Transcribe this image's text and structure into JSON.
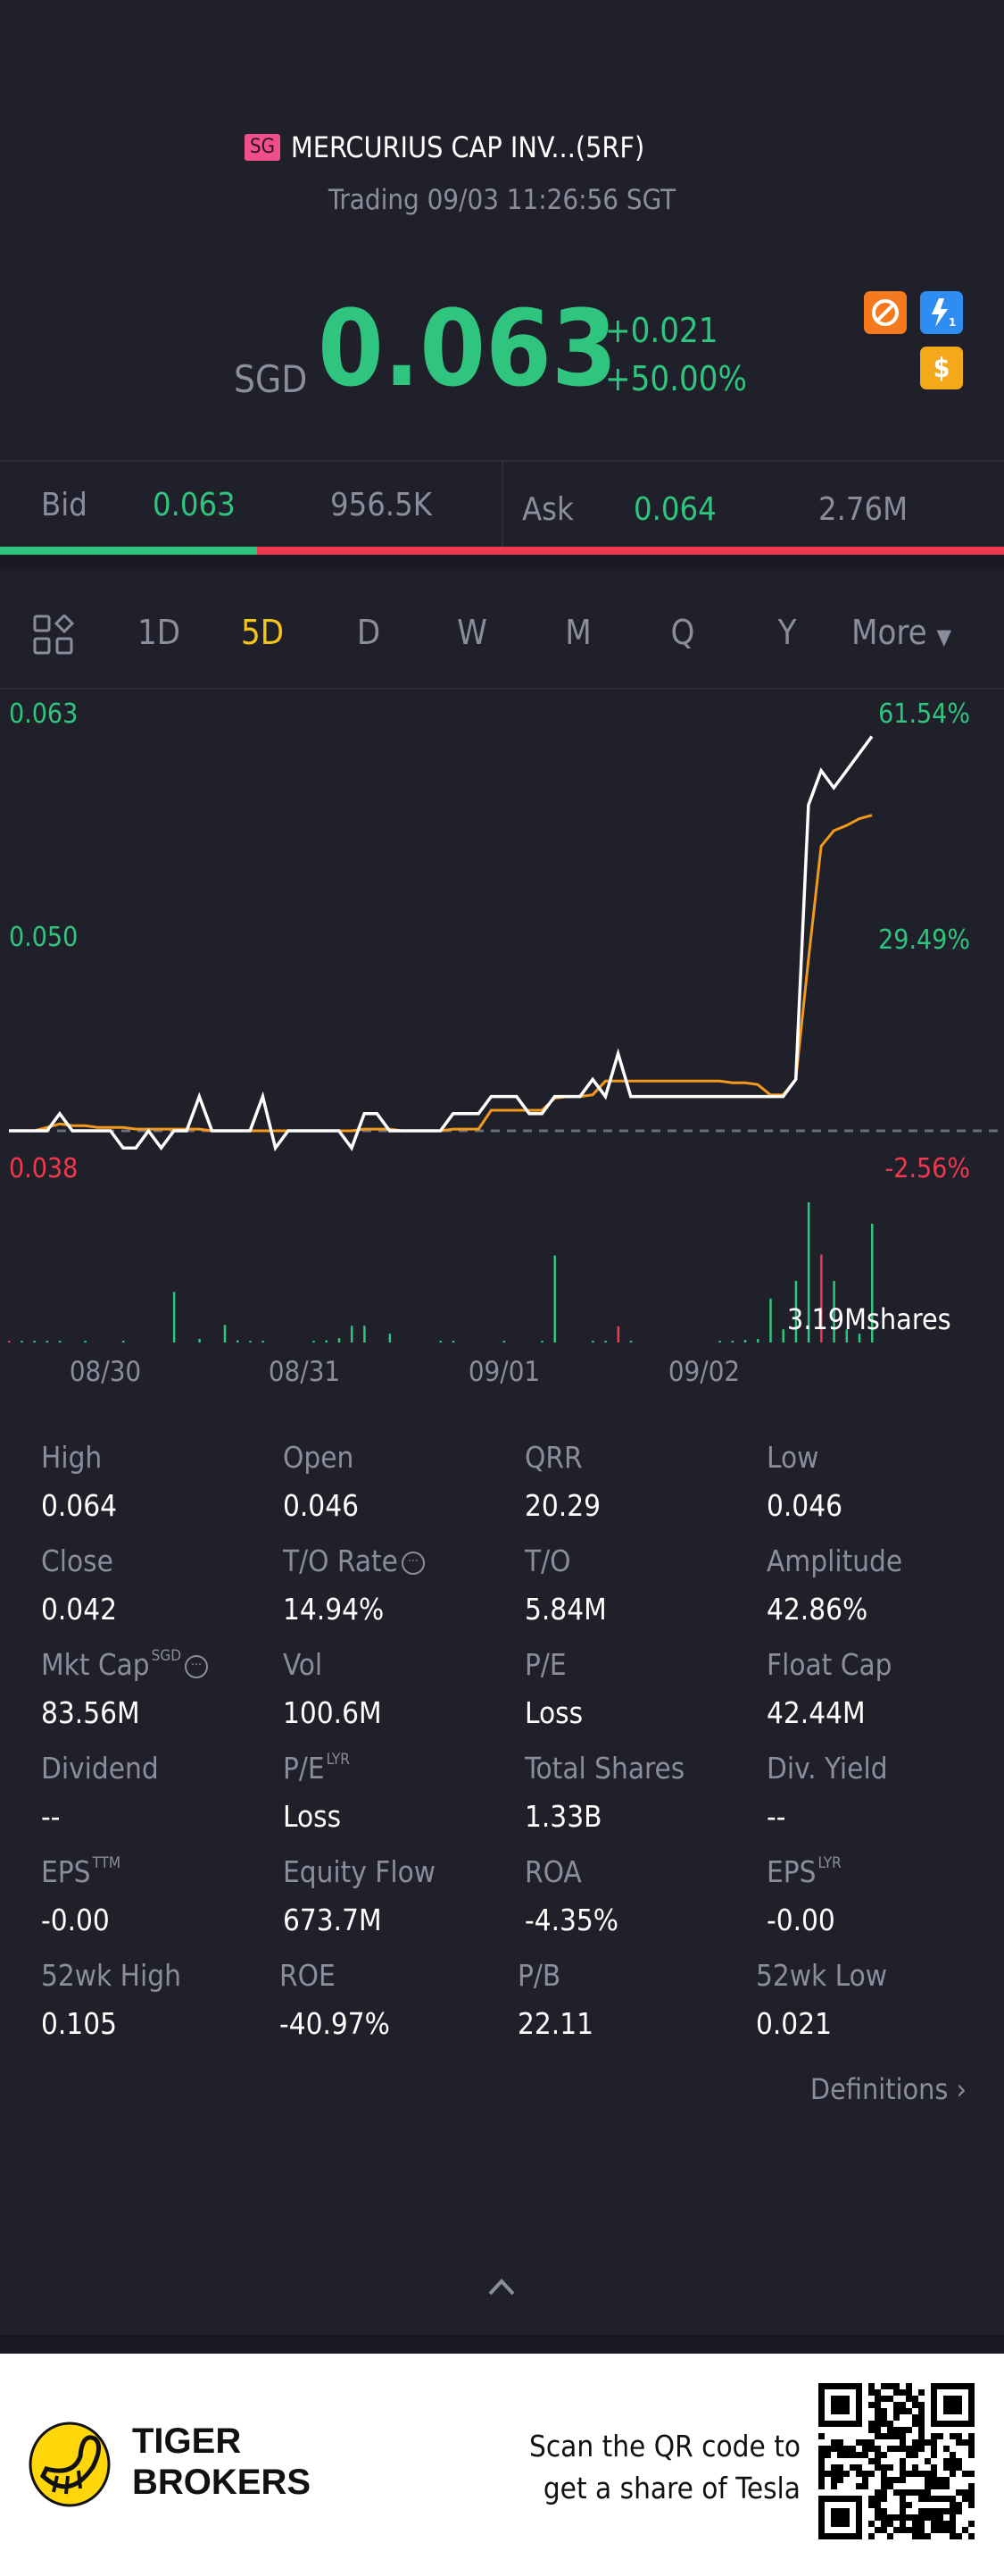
{
  "header": {
    "market_badge": "SG",
    "title": "MERCURIUS CAP INV...(5RF)",
    "status": "Trading 09/03 11:26:56 SGT"
  },
  "quote": {
    "currency": "SGD",
    "price": "0.063",
    "change": "+0.021",
    "change_pct": "+50.00%"
  },
  "badges": [
    {
      "icon": "no-shorting-icon",
      "color": "#f57a1f"
    },
    {
      "icon": "lightning-level1-icon",
      "color": "#2f8cf0"
    },
    {
      "icon": "dollar-icon",
      "color": "#f5a81a",
      "text": "$"
    }
  ],
  "order_book": {
    "bid_label": "Bid",
    "bid_price": "0.063",
    "bid_size": "956.5K",
    "ask_label": "Ask",
    "ask_price": "0.064",
    "ask_size": "2.76M",
    "bid_ratio": 0.256
  },
  "periods": {
    "items": [
      "1D",
      "5D",
      "D",
      "W",
      "M",
      "Q",
      "Y"
    ],
    "active": "5D",
    "more": "More"
  },
  "colors": {
    "up": "#2fc57f",
    "down": "#f0384f",
    "price_line": "#ffffff",
    "avg_line": "#f39a1c",
    "active_tab": "#f5c518"
  },
  "chart_data": {
    "type": "line",
    "y_labels_left": [
      "0.063",
      "0.050",
      "0.038"
    ],
    "y_labels_right": [
      "61.54%",
      "29.49%",
      "-2.56%"
    ],
    "x_labels": [
      "08/30",
      "08/31",
      "09/01",
      "09/02"
    ],
    "ylim": [
      0.038,
      0.063
    ],
    "reference_price": 0.039,
    "volume_label": "3.19Mshares",
    "series": [
      {
        "values": [
          0.039,
          0.039,
          0.039,
          0.039,
          0.04,
          0.039,
          0.039,
          0.039,
          0.039,
          0.038,
          0.038,
          0.039,
          0.038,
          0.039,
          0.039,
          0.041,
          0.039,
          0.039,
          0.039,
          0.039,
          0.041,
          0.038,
          0.039,
          0.039,
          0.039,
          0.039,
          0.039,
          0.038,
          0.04,
          0.04,
          0.039,
          0.039,
          0.039,
          0.039,
          0.039,
          0.04,
          0.04,
          0.04,
          0.041,
          0.041,
          0.041,
          0.04,
          0.04,
          0.041,
          0.041,
          0.041,
          0.042,
          0.041,
          0.0435,
          0.041,
          0.041,
          0.041,
          0.041,
          0.041,
          0.041,
          0.041,
          0.041,
          0.041,
          0.041,
          0.041,
          0.041,
          0.041,
          0.042,
          0.058,
          0.06,
          0.059,
          0.06,
          0.061,
          0.062
        ]
      },
      {
        "values": [
          0.039,
          0.039,
          0.039,
          0.0392,
          0.0394,
          0.0393,
          0.0393,
          0.0392,
          0.0392,
          0.0392,
          0.0391,
          0.0391,
          0.0391,
          0.0391,
          0.0391,
          0.0391,
          0.039,
          0.039,
          0.039,
          0.039,
          0.039,
          0.039,
          0.039,
          0.039,
          0.039,
          0.039,
          0.039,
          0.039,
          0.0391,
          0.0391,
          0.0391,
          0.039,
          0.039,
          0.039,
          0.039,
          0.0391,
          0.0391,
          0.0391,
          0.0402,
          0.0402,
          0.0402,
          0.0402,
          0.0402,
          0.0409,
          0.041,
          0.041,
          0.0411,
          0.0419,
          0.0419,
          0.0419,
          0.0419,
          0.0419,
          0.0419,
          0.0419,
          0.0419,
          0.0419,
          0.0419,
          0.0418,
          0.0418,
          0.0417,
          0.0411,
          0.0411,
          0.042,
          0.049,
          0.0556,
          0.0565,
          0.0568,
          0.0572,
          0.0574
        ]
      }
    ],
    "volume": [
      0.02,
      0.01,
      0.01,
      0.01,
      0.01,
      0,
      0.01,
      0,
      0,
      0.01,
      0,
      0,
      0,
      1.15,
      0,
      0.08,
      0,
      0.4,
      0.05,
      0.03,
      0.03,
      0,
      0,
      0,
      0.02,
      0.05,
      0.1,
      0.38,
      0.38,
      0,
      0.2,
      0,
      0,
      0,
      0.03,
      0.04,
      0,
      0,
      0,
      0.03,
      0,
      0,
      0.01,
      1.98,
      0,
      0,
      0.01,
      0.02,
      0.37,
      0.01,
      0,
      0,
      0,
      0,
      0,
      0,
      0.02,
      0.04,
      0.06,
      0.08,
      1.0,
      0.3,
      1.4,
      3.19,
      2.0,
      1.4,
      0.3,
      0.2,
      2.7
    ],
    "volume_down_indices": [
      0,
      48,
      64
    ]
  },
  "stats": [
    {
      "label": "High",
      "value": "0.064"
    },
    {
      "label": "Open",
      "value": "0.046"
    },
    {
      "label": "QRR",
      "value": "20.29"
    },
    {
      "label": "Low",
      "value": "0.046"
    },
    {
      "label": "Close",
      "value": "0.042"
    },
    {
      "label": "T/O Rate",
      "value": "14.94%"
    },
    {
      "label": "T/O",
      "value": "5.84M"
    },
    {
      "label": "Amplitude",
      "value": "42.86%"
    },
    {
      "label": "Mkt Cap",
      "sup": "SGD",
      "value": "83.56M"
    },
    {
      "label": "Vol",
      "value": "100.6M"
    },
    {
      "label": "P/E",
      "value": "Loss"
    },
    {
      "label": "Float Cap",
      "value": "42.44M"
    },
    {
      "label": "Dividend",
      "value": "--"
    },
    {
      "label": "P/E",
      "sup": "LYR",
      "value": "Loss"
    },
    {
      "label": "Total Shares",
      "value": "1.33B"
    },
    {
      "label": "Div. Yield",
      "value": "--"
    },
    {
      "label": "EPS",
      "sup": "TTM",
      "value": "-0.00"
    },
    {
      "label": "Equity Flow",
      "value": "673.7M"
    },
    {
      "label": "ROA",
      "value": "-4.35%"
    },
    {
      "label": "EPS",
      "sup": "LYR",
      "value": "-0.00"
    },
    {
      "label": "52wk High",
      "value": "0.105"
    },
    {
      "label": "ROE",
      "value": "-40.97%"
    },
    {
      "label": "P/B",
      "value": "22.11"
    },
    {
      "label": "52wk Low",
      "value": "0.021"
    }
  ],
  "definitions_link": "Definitions",
  "footer": {
    "brand_line1": "TIGER",
    "brand_line2": "BROKERS",
    "promo_line1": "Scan the QR code to",
    "promo_line2": "get a share of Tesla"
  }
}
